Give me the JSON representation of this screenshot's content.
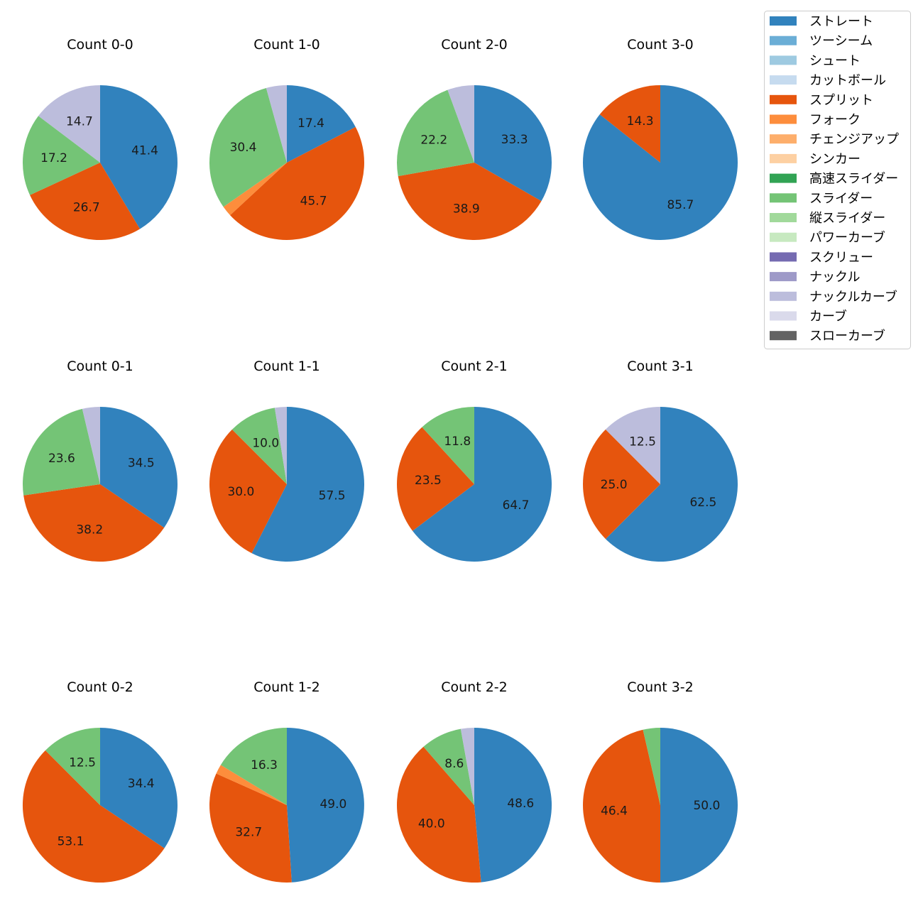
{
  "chart_data": {
    "type": "pie",
    "legend_position": "top-right",
    "pitch_types": [
      {
        "name": "ストレート",
        "color": "#3182bd"
      },
      {
        "name": "ツーシーム",
        "color": "#6baed6"
      },
      {
        "name": "シュート",
        "color": "#9ecae1"
      },
      {
        "name": "カットボール",
        "color": "#c6dbef"
      },
      {
        "name": "スプリット",
        "color": "#e6550d"
      },
      {
        "name": "フォーク",
        "color": "#fd8d3c"
      },
      {
        "name": "チェンジアップ",
        "color": "#fdae6b"
      },
      {
        "name": "シンカー",
        "color": "#fdd0a2"
      },
      {
        "name": "高速スライダー",
        "color": "#31a354"
      },
      {
        "name": "スライダー",
        "color": "#74c476"
      },
      {
        "name": "縦スライダー",
        "color": "#a1d99b"
      },
      {
        "name": "パワーカーブ",
        "color": "#c7e9c0"
      },
      {
        "name": "スクリュー",
        "color": "#756bb1"
      },
      {
        "name": "ナックル",
        "color": "#9e9ac8"
      },
      {
        "name": "ナックルカーブ",
        "color": "#bcbddc"
      },
      {
        "name": "カーブ",
        "color": "#dadaeb"
      },
      {
        "name": "スローカーブ",
        "color": "#636363"
      }
    ],
    "charts": [
      {
        "title": "Count 0-0",
        "slices": [
          {
            "type": "ストレート",
            "value": 41.4,
            "label": "41.4"
          },
          {
            "type": "スプリット",
            "value": 26.7,
            "label": "26.7"
          },
          {
            "type": "スライダー",
            "value": 17.2,
            "label": "17.2"
          },
          {
            "type": "ナックルカーブ",
            "value": 14.7,
            "label": "14.7"
          }
        ]
      },
      {
        "title": "Count 1-0",
        "slices": [
          {
            "type": "ストレート",
            "value": 17.4,
            "label": "17.4"
          },
          {
            "type": "スプリット",
            "value": 45.7,
            "label": "45.7"
          },
          {
            "type": "フォーク",
            "value": 2.2
          },
          {
            "type": "スライダー",
            "value": 30.4,
            "label": "30.4"
          },
          {
            "type": "ナックルカーブ",
            "value": 4.3
          }
        ]
      },
      {
        "title": "Count 2-0",
        "slices": [
          {
            "type": "ストレート",
            "value": 33.3,
            "label": "33.3"
          },
          {
            "type": "スプリット",
            "value": 38.9,
            "label": "38.9"
          },
          {
            "type": "スライダー",
            "value": 22.2,
            "label": "22.2"
          },
          {
            "type": "ナックルカーブ",
            "value": 5.6
          }
        ]
      },
      {
        "title": "Count 3-0",
        "slices": [
          {
            "type": "ストレート",
            "value": 85.7,
            "label": "85.7"
          },
          {
            "type": "スプリット",
            "value": 14.3,
            "label": "14.3"
          }
        ]
      },
      {
        "title": "Count 0-1",
        "slices": [
          {
            "type": "ストレート",
            "value": 34.5,
            "label": "34.5"
          },
          {
            "type": "スプリット",
            "value": 38.2,
            "label": "38.2"
          },
          {
            "type": "スライダー",
            "value": 23.6,
            "label": "23.6"
          },
          {
            "type": "ナックルカーブ",
            "value": 3.7
          }
        ]
      },
      {
        "title": "Count 1-1",
        "slices": [
          {
            "type": "ストレート",
            "value": 57.5,
            "label": "57.5"
          },
          {
            "type": "スプリット",
            "value": 30.0,
            "label": "30.0"
          },
          {
            "type": "スライダー",
            "value": 10.0,
            "label": "10.0"
          },
          {
            "type": "ナックルカーブ",
            "value": 2.5
          }
        ]
      },
      {
        "title": "Count 2-1",
        "slices": [
          {
            "type": "ストレート",
            "value": 64.7,
            "label": "64.7"
          },
          {
            "type": "スプリット",
            "value": 23.5,
            "label": "23.5"
          },
          {
            "type": "スライダー",
            "value": 11.8,
            "label": "11.8"
          }
        ]
      },
      {
        "title": "Count 3-1",
        "slices": [
          {
            "type": "ストレート",
            "value": 62.5,
            "label": "62.5"
          },
          {
            "type": "スプリット",
            "value": 25.0,
            "label": "25.0"
          },
          {
            "type": "ナックルカーブ",
            "value": 12.5,
            "label": "12.5"
          }
        ]
      },
      {
        "title": "Count 0-2",
        "slices": [
          {
            "type": "ストレート",
            "value": 34.4,
            "label": "34.4"
          },
          {
            "type": "スプリット",
            "value": 53.1,
            "label": "53.1"
          },
          {
            "type": "スライダー",
            "value": 12.5,
            "label": "12.5"
          }
        ]
      },
      {
        "title": "Count 1-2",
        "slices": [
          {
            "type": "ストレート",
            "value": 49.0,
            "label": "49.0"
          },
          {
            "type": "スプリット",
            "value": 32.7,
            "label": "32.7"
          },
          {
            "type": "フォーク",
            "value": 2.0
          },
          {
            "type": "スライダー",
            "value": 16.3,
            "label": "16.3"
          }
        ]
      },
      {
        "title": "Count 2-2",
        "slices": [
          {
            "type": "ストレート",
            "value": 48.6,
            "label": "48.6"
          },
          {
            "type": "スプリット",
            "value": 40.0,
            "label": "40.0"
          },
          {
            "type": "スライダー",
            "value": 8.6,
            "label": "8.6"
          },
          {
            "type": "ナックルカーブ",
            "value": 2.8
          }
        ]
      },
      {
        "title": "Count 3-2",
        "slices": [
          {
            "type": "ストレート",
            "value": 50.0,
            "label": "50.0"
          },
          {
            "type": "スプリット",
            "value": 46.4,
            "label": "46.4"
          },
          {
            "type": "スライダー",
            "value": 3.6
          }
        ]
      }
    ]
  }
}
